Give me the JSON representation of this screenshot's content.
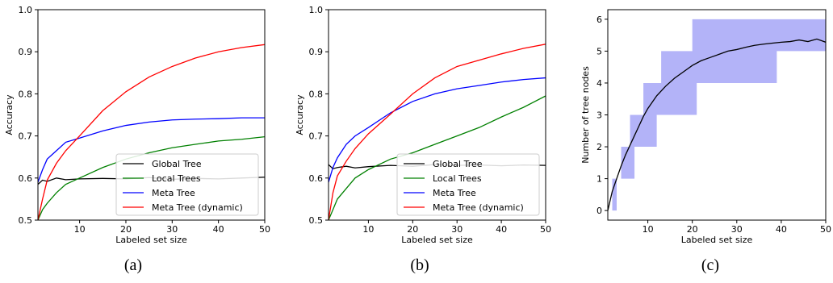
{
  "chart_data": [
    {
      "type": "line",
      "panel_label": "(a)",
      "xlabel": "Labeled set size",
      "ylabel": "Accuracy",
      "xlim": [
        1,
        50
      ],
      "ylim": [
        0.5,
        1.0
      ],
      "xticks": [
        10,
        20,
        30,
        40,
        50
      ],
      "yticks": [
        0.5,
        0.6,
        0.7,
        0.8,
        0.9,
        1.0
      ],
      "legend_position": "bottom-right",
      "x": [
        1,
        2,
        3,
        5,
        7,
        10,
        15,
        20,
        25,
        30,
        35,
        40,
        45,
        50
      ],
      "series": [
        {
          "name": "Global Tree",
          "color": "#000000",
          "values": [
            0.585,
            0.595,
            0.592,
            0.6,
            0.596,
            0.598,
            0.599,
            0.598,
            0.601,
            0.597,
            0.599,
            0.598,
            0.6,
            0.602
          ]
        },
        {
          "name": "Local Trees",
          "color": "#008000",
          "values": [
            0.5,
            0.525,
            0.54,
            0.565,
            0.585,
            0.6,
            0.625,
            0.645,
            0.66,
            0.672,
            0.68,
            0.688,
            0.692,
            0.698
          ]
        },
        {
          "name": "Meta Tree",
          "color": "#0000ff",
          "values": [
            0.59,
            0.62,
            0.645,
            0.665,
            0.685,
            0.695,
            0.712,
            0.725,
            0.733,
            0.738,
            0.74,
            0.741,
            0.743,
            0.743
          ]
        },
        {
          "name": "Meta Tree (dynamic)",
          "color": "#ff0000",
          "values": [
            0.5,
            0.55,
            0.595,
            0.635,
            0.665,
            0.7,
            0.76,
            0.805,
            0.84,
            0.865,
            0.885,
            0.9,
            0.91,
            0.917
          ]
        }
      ]
    },
    {
      "type": "line",
      "panel_label": "(b)",
      "xlabel": "Labeled set size",
      "ylabel": "Accuracy",
      "xlim": [
        1,
        50
      ],
      "ylim": [
        0.5,
        1.0
      ],
      "xticks": [
        10,
        20,
        30,
        40,
        50
      ],
      "yticks": [
        0.5,
        0.6,
        0.7,
        0.8,
        0.9,
        1.0
      ],
      "legend_position": "bottom-right",
      "x": [
        1,
        2,
        3,
        5,
        7,
        10,
        15,
        20,
        25,
        30,
        35,
        40,
        45,
        50
      ],
      "series": [
        {
          "name": "Global Tree",
          "color": "#000000",
          "values": [
            0.632,
            0.622,
            0.625,
            0.628,
            0.624,
            0.627,
            0.63,
            0.628,
            0.632,
            0.63,
            0.631,
            0.629,
            0.631,
            0.63
          ]
        },
        {
          "name": "Local Trees",
          "color": "#008000",
          "values": [
            0.5,
            0.525,
            0.55,
            0.575,
            0.6,
            0.62,
            0.645,
            0.66,
            0.68,
            0.7,
            0.72,
            0.745,
            0.768,
            0.795
          ]
        },
        {
          "name": "Meta Tree",
          "color": "#0000ff",
          "values": [
            0.59,
            0.625,
            0.648,
            0.68,
            0.7,
            0.72,
            0.755,
            0.782,
            0.8,
            0.812,
            0.82,
            0.828,
            0.834,
            0.838
          ]
        },
        {
          "name": "Meta Tree (dynamic)",
          "color": "#ff0000",
          "values": [
            0.5,
            0.565,
            0.605,
            0.64,
            0.67,
            0.705,
            0.752,
            0.8,
            0.838,
            0.865,
            0.88,
            0.895,
            0.908,
            0.918
          ]
        }
      ]
    },
    {
      "type": "area",
      "panel_label": "(c)",
      "xlabel": "Labeled set size",
      "ylabel": "Number of tree nodes",
      "xlim": [
        1,
        50
      ],
      "ylim": [
        -0.3,
        6.3
      ],
      "xticks": [
        10,
        20,
        30,
        40,
        50
      ],
      "yticks": [
        0,
        1,
        2,
        3,
        4,
        5,
        6
      ],
      "band_color": "#b3b3f8",
      "band": {
        "x": [
          1,
          2,
          3,
          4,
          5,
          6,
          7,
          8,
          9,
          10,
          11,
          12,
          13,
          14,
          15,
          16,
          17,
          18,
          19,
          20,
          21,
          22,
          23,
          24,
          25,
          26,
          27,
          28,
          29,
          30,
          31,
          32,
          33,
          34,
          35,
          36,
          37,
          38,
          39,
          40,
          41,
          42,
          43,
          44,
          45,
          46,
          47,
          48,
          49,
          50
        ],
        "lower": [
          0,
          0,
          1,
          1,
          1,
          1,
          2,
          2,
          2,
          2,
          2,
          3,
          3,
          3,
          3,
          3,
          3,
          3,
          3,
          3,
          4,
          4,
          4,
          4,
          4,
          4,
          4,
          4,
          4,
          4,
          4,
          4,
          4,
          4,
          4,
          4,
          4,
          4,
          5,
          5,
          5,
          5,
          5,
          5,
          5,
          5,
          5,
          5,
          5,
          5
        ],
        "upper": [
          0,
          1,
          1,
          2,
          2,
          3,
          3,
          3,
          4,
          4,
          4,
          4,
          5,
          5,
          5,
          5,
          5,
          5,
          5,
          6,
          6,
          6,
          6,
          6,
          6,
          6,
          6,
          6,
          6,
          6,
          6,
          6,
          6,
          6,
          6,
          6,
          6,
          6,
          6,
          6,
          6,
          6,
          6,
          6,
          6,
          6,
          6,
          6,
          6,
          6
        ]
      },
      "mean_line": {
        "color": "#000000",
        "x": [
          1,
          2,
          3,
          4,
          5,
          6,
          7,
          8,
          9,
          10,
          12,
          14,
          16,
          18,
          20,
          22,
          24,
          26,
          28,
          30,
          32,
          34,
          36,
          38,
          40,
          42,
          44,
          46,
          48,
          50
        ],
        "values": [
          0.0,
          0.6,
          1.0,
          1.4,
          1.75,
          2.05,
          2.35,
          2.65,
          2.95,
          3.2,
          3.6,
          3.9,
          4.15,
          4.35,
          4.55,
          4.7,
          4.8,
          4.9,
          5.0,
          5.05,
          5.12,
          5.18,
          5.22,
          5.25,
          5.28,
          5.3,
          5.35,
          5.3,
          5.38,
          5.28
        ]
      }
    }
  ]
}
